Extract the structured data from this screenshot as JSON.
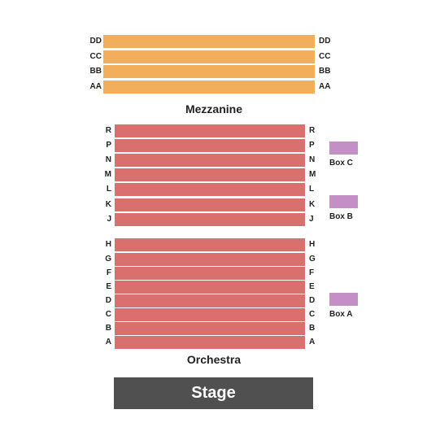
{
  "mezzanine": {
    "title": "Mezzanine",
    "color": "#f2ae5b",
    "rows": [
      "DD",
      "CC",
      "BB",
      "AA"
    ]
  },
  "orchestra": {
    "title": "Orchestra",
    "color": "#d9706e",
    "upper_rows": [
      "R",
      "P",
      "N",
      "M",
      "L",
      "K",
      "J"
    ],
    "lower_rows": [
      "H",
      "G",
      "F",
      "E",
      "D",
      "C",
      "B",
      "A"
    ]
  },
  "boxes": {
    "color": "#c38fc6",
    "items": [
      "Box C",
      "Box B",
      "Box A"
    ]
  },
  "stage": {
    "label": "Stage",
    "color": "#505050"
  }
}
